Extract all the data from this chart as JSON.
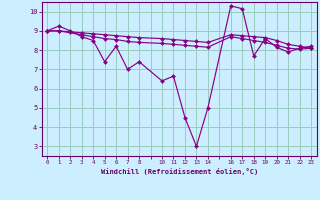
{
  "xlabel": "Windchill (Refroidissement éolien,°C)",
  "bg_color": "#cceeff",
  "line_color": "#880088",
  "grid_color": "#99ccbb",
  "xtick_labels": [
    "0",
    "1",
    "2",
    "3",
    "4",
    "5",
    "6",
    "7",
    "8",
    "",
    "10",
    "11",
    "12",
    "13",
    "14",
    "",
    "16",
    "17",
    "18",
    "19",
    "20",
    "21",
    "22",
    "23"
  ],
  "ytick_values": [
    3,
    4,
    5,
    6,
    7,
    8,
    9,
    10
  ],
  "xlim": [
    -0.5,
    23.5
  ],
  "ylim": [
    2.5,
    10.5
  ],
  "series_main": [
    [
      0,
      9.0
    ],
    [
      1,
      9.25
    ],
    [
      2,
      9.0
    ],
    [
      3,
      8.7
    ],
    [
      4,
      8.5
    ],
    [
      5,
      7.4
    ],
    [
      6,
      8.2
    ],
    [
      7,
      7.0
    ],
    [
      8,
      7.4
    ],
    [
      10,
      6.4
    ],
    [
      11,
      6.65
    ],
    [
      12,
      4.5
    ],
    [
      13,
      3.0
    ],
    [
      14,
      5.0
    ],
    [
      16,
      10.3
    ],
    [
      17,
      10.15
    ],
    [
      18,
      7.7
    ],
    [
      19,
      8.6
    ],
    [
      20,
      8.15
    ],
    [
      21,
      7.9
    ],
    [
      22,
      8.1
    ],
    [
      23,
      8.2
    ]
  ],
  "series_flat1": [
    [
      0,
      9.0
    ],
    [
      1,
      9.0
    ],
    [
      3,
      8.8
    ],
    [
      4,
      8.7
    ],
    [
      5,
      8.6
    ],
    [
      6,
      8.55
    ],
    [
      7,
      8.45
    ],
    [
      8,
      8.4
    ],
    [
      10,
      8.35
    ],
    [
      11,
      8.3
    ],
    [
      12,
      8.25
    ],
    [
      13,
      8.2
    ],
    [
      14,
      8.15
    ],
    [
      16,
      8.7
    ],
    [
      17,
      8.6
    ],
    [
      18,
      8.5
    ],
    [
      19,
      8.4
    ],
    [
      20,
      8.25
    ],
    [
      21,
      8.1
    ],
    [
      22,
      8.05
    ],
    [
      23,
      8.1
    ]
  ],
  "series_flat2": [
    [
      0,
      9.0
    ],
    [
      1,
      9.0
    ],
    [
      2,
      8.95
    ],
    [
      3,
      8.9
    ],
    [
      4,
      8.85
    ],
    [
      5,
      8.8
    ],
    [
      6,
      8.75
    ],
    [
      7,
      8.7
    ],
    [
      8,
      8.65
    ],
    [
      10,
      8.6
    ],
    [
      11,
      8.55
    ],
    [
      12,
      8.5
    ],
    [
      13,
      8.45
    ],
    [
      14,
      8.4
    ],
    [
      16,
      8.8
    ],
    [
      17,
      8.75
    ],
    [
      18,
      8.7
    ],
    [
      19,
      8.65
    ],
    [
      20,
      8.5
    ],
    [
      21,
      8.3
    ],
    [
      22,
      8.2
    ],
    [
      23,
      8.1
    ]
  ]
}
